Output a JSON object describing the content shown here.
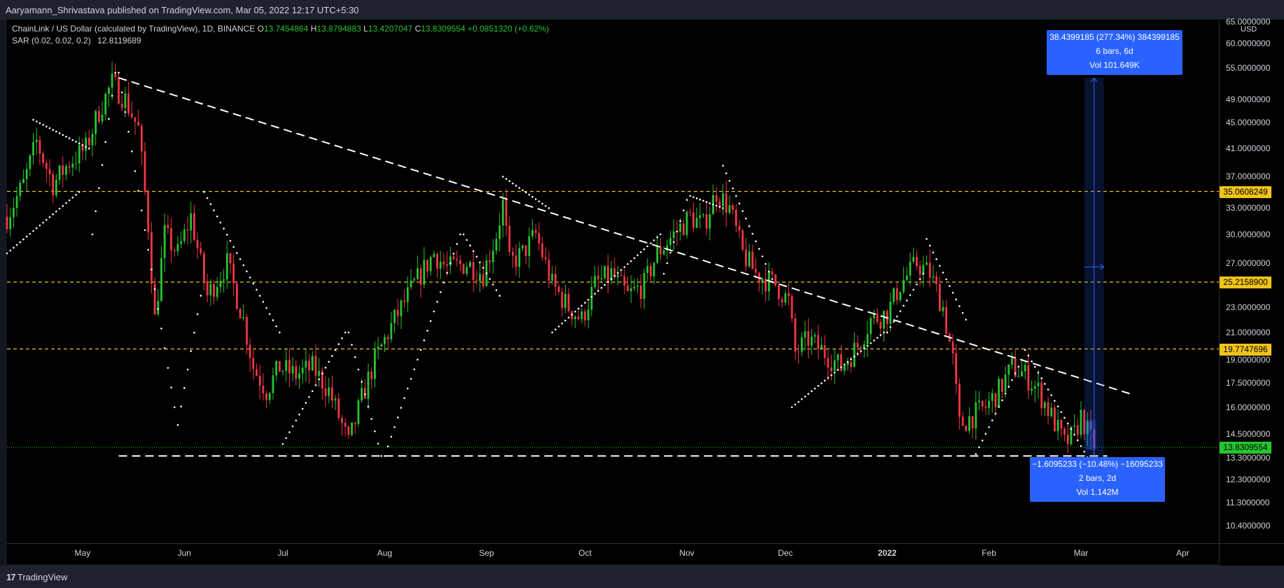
{
  "header": {
    "publisher": "Aaryamann_Shrivastava published on TradingView.com, Mar 05, 2022 12:17 UTC+5:30"
  },
  "legend": {
    "symbol": "ChainLink / US Dollar (calculated by TradingView), 1D, BINANCE",
    "o_label": "O",
    "o": "13.7454864",
    "h_label": "H",
    "h": "13.8794883",
    "l_label": "L",
    "l": "13.4207047",
    "c_label": "C",
    "c": "13.8309554",
    "change": "+0.0851320 (+0.62%)",
    "indicator": "SAR (0.02, 0.02, 0.2)",
    "indicator_value": "12.8119689"
  },
  "currency": "USD",
  "measure_up": {
    "line1": "38.4399185 (277.34%) 384399185",
    "line2": "6 bars, 6d",
    "line3": "Vol 101.649K"
  },
  "measure_down": {
    "line1": "−1.6095233 (−10.48%) −16095233",
    "line2": "2 bars, 2d",
    "line3": "Vol 1.142M"
  },
  "footer": {
    "brand": "TradingView"
  },
  "colors": {
    "bg": "#131722",
    "up": "#26c431",
    "down": "#f23645",
    "sar": "#ffffff",
    "level": "#f0c419",
    "measure": "#2962ff"
  },
  "chart_data": {
    "type": "candlestick",
    "scale": "log",
    "currency": "USD",
    "yticks": [
      65.0,
      60.0,
      55.0,
      49.0,
      45.0,
      41.0,
      37.0,
      33.0,
      30.0,
      27.0,
      23.0,
      21.0,
      19.0,
      17.5,
      16.0,
      14.5,
      13.3,
      12.3,
      11.3,
      10.4
    ],
    "ytick_labels": [
      "65.0000000",
      "60.0000000",
      "55.0000000",
      "49.0000000",
      "45.0000000",
      "41.0000000",
      "37.0000000",
      "33.0000000",
      "30.0000000",
      "27.0000000",
      "23.0000000",
      "21.0000000",
      "19.0000000",
      "17.5000000",
      "16.0000000",
      "14.5000000",
      "13.3000000",
      "12.3000000",
      "11.3000000",
      "10.4000000"
    ],
    "x_labels": [
      "May",
      "Jun",
      "Jul",
      "Aug",
      "Sep",
      "Oct",
      "Nov",
      "Dec",
      "2022",
      "Feb",
      "Mar",
      "Apr"
    ],
    "x_label_dates": [
      "2021-05-01",
      "2021-06-01",
      "2021-07-01",
      "2021-08-01",
      "2021-09-01",
      "2021-10-01",
      "2021-11-01",
      "2021-12-01",
      "2022-01-01",
      "2022-02-01",
      "2022-03-01",
      "2022-04-01"
    ],
    "x_range": [
      "2021-04-08",
      "2022-04-12"
    ],
    "levels": [
      {
        "value": 35.0608249,
        "label": "35.0608249"
      },
      {
        "value": 25.21589,
        "label": "25.2158900"
      },
      {
        "value": 19.7747696,
        "label": "19.7747696"
      }
    ],
    "last_price": {
      "value": 13.8309554,
      "label": "13.8309554"
    },
    "support": {
      "value": 13.4,
      "from": "2021-05-12",
      "to": "2022-03-09"
    },
    "trendline": {
      "from": [
        "2021-05-12",
        53.0
      ],
      "to": [
        "2022-03-16",
        16.8
      ]
    },
    "measure_up": {
      "date": "2022-03-05",
      "from": 13.4,
      "to": 53.0
    },
    "measure_down": {
      "date": "2022-03-04",
      "from": 15.3,
      "to": 13.7
    },
    "price_path": [
      [
        "2021-04-08",
        32.0
      ],
      [
        "2021-04-13",
        36.0
      ],
      [
        "2021-04-17",
        42.0
      ],
      [
        "2021-04-22",
        36.0
      ],
      [
        "2021-04-27",
        39.0
      ],
      [
        "2021-05-02",
        41.0
      ],
      [
        "2021-05-06",
        47.0
      ],
      [
        "2021-05-10",
        52.0
      ],
      [
        "2021-05-14",
        49.0
      ],
      [
        "2021-05-18",
        44.0
      ],
      [
        "2021-05-21",
        31.0
      ],
      [
        "2021-05-23",
        22.0
      ],
      [
        "2021-05-26",
        30.0
      ],
      [
        "2021-05-30",
        28.0
      ],
      [
        "2021-06-03",
        32.0
      ],
      [
        "2021-06-08",
        24.0
      ],
      [
        "2021-06-14",
        27.0
      ],
      [
        "2021-06-19",
        22.0
      ],
      [
        "2021-06-22",
        18.5
      ],
      [
        "2021-06-26",
        17.0
      ],
      [
        "2021-06-30",
        18.5
      ],
      [
        "2021-07-05",
        18.0
      ],
      [
        "2021-07-10",
        18.5
      ],
      [
        "2021-07-15",
        17.0
      ],
      [
        "2021-07-19",
        15.0
      ],
      [
        "2021-07-21",
        14.0
      ],
      [
        "2021-07-25",
        16.5
      ],
      [
        "2021-07-29",
        19.0
      ],
      [
        "2021-08-04",
        22.0
      ],
      [
        "2021-08-10",
        25.0
      ],
      [
        "2021-08-16",
        28.0
      ],
      [
        "2021-08-20",
        26.5
      ],
      [
        "2021-08-26",
        27.0
      ],
      [
        "2021-08-31",
        26.0
      ],
      [
        "2021-09-04",
        30.0
      ],
      [
        "2021-09-06",
        33.5
      ],
      [
        "2021-09-08",
        27.0
      ],
      [
        "2021-09-12",
        28.0
      ],
      [
        "2021-09-16",
        30.0
      ],
      [
        "2021-09-21",
        25.0
      ],
      [
        "2021-09-26",
        23.0
      ],
      [
        "2021-09-30",
        22.0
      ],
      [
        "2021-10-04",
        25.0
      ],
      [
        "2021-10-09",
        26.0
      ],
      [
        "2021-10-14",
        24.0
      ],
      [
        "2021-10-19",
        25.0
      ],
      [
        "2021-10-23",
        28.0
      ],
      [
        "2021-10-28",
        30.0
      ],
      [
        "2021-11-02",
        32.0
      ],
      [
        "2021-11-06",
        31.0
      ],
      [
        "2021-11-10",
        35.0
      ],
      [
        "2021-11-14",
        33.0
      ],
      [
        "2021-11-18",
        28.0
      ],
      [
        "2021-11-22",
        26.0
      ],
      [
        "2021-11-28",
        25.0
      ],
      [
        "2021-12-02",
        23.5
      ],
      [
        "2021-12-04",
        19.5
      ],
      [
        "2021-12-08",
        20.5
      ],
      [
        "2021-12-13",
        19.5
      ],
      [
        "2021-12-18",
        18.5
      ],
      [
        "2021-12-23",
        20.0
      ],
      [
        "2021-12-27",
        22.0
      ],
      [
        "2022-01-01",
        22.5
      ],
      [
        "2022-01-05",
        25.0
      ],
      [
        "2022-01-10",
        27.0
      ],
      [
        "2022-01-14",
        26.0
      ],
      [
        "2022-01-18",
        23.0
      ],
      [
        "2022-01-21",
        19.0
      ],
      [
        "2022-01-23",
        15.0
      ],
      [
        "2022-01-27",
        15.5
      ],
      [
        "2022-01-31",
        16.0
      ],
      [
        "2022-02-04",
        17.0
      ],
      [
        "2022-02-08",
        18.5
      ],
      [
        "2022-02-12",
        18.0
      ],
      [
        "2022-02-16",
        17.0
      ],
      [
        "2022-02-20",
        15.5
      ],
      [
        "2022-02-24",
        14.0
      ],
      [
        "2022-02-27",
        14.5
      ],
      [
        "2022-03-01",
        15.5
      ],
      [
        "2022-03-05",
        13.83
      ]
    ],
    "sar_segments": [
      {
        "from": "2021-04-08",
        "to": "2021-04-30",
        "start": 28.0,
        "end": 35.0
      },
      {
        "from": "2021-04-16",
        "to": "2021-05-03",
        "start": 45.5,
        "end": 41.0
      },
      {
        "from": "2021-05-04",
        "to": "2021-05-11",
        "start": 30.0,
        "end": 54.0
      },
      {
        "from": "2021-05-12",
        "to": "2021-05-29",
        "start": 54.0,
        "end": 16.0
      },
      {
        "from": "2021-05-30",
        "to": "2021-06-06",
        "start": 15.0,
        "end": 24.0
      },
      {
        "from": "2021-06-07",
        "to": "2021-06-30",
        "start": 35.0,
        "end": 21.0
      },
      {
        "from": "2021-07-01",
        "to": "2021-07-20",
        "start": 14.0,
        "end": 21.0
      },
      {
        "from": "2021-07-21",
        "to": "2021-07-31",
        "start": 21.0,
        "end": 13.4
      },
      {
        "from": "2021-08-01",
        "to": "2021-08-24",
        "start": 13.4,
        "end": 30.0
      },
      {
        "from": "2021-08-25",
        "to": "2021-09-05",
        "start": 30.0,
        "end": 24.0
      },
      {
        "from": "2021-09-06",
        "to": "2021-09-20",
        "start": 37.0,
        "end": 33.0
      },
      {
        "from": "2021-09-21",
        "to": "2021-10-24",
        "start": 21.0,
        "end": 30.0
      },
      {
        "from": "2021-10-25",
        "to": "2021-11-01",
        "start": 26.0,
        "end": 34.0
      },
      {
        "from": "2021-11-02",
        "to": "2021-11-12",
        "start": 34.5,
        "end": 33.0
      },
      {
        "from": "2021-11-12",
        "to": "2021-11-27",
        "start": 38.5,
        "end": 25.5
      },
      {
        "from": "2021-12-03",
        "to": "2021-12-31",
        "start": 16.0,
        "end": 21.0
      },
      {
        "from": "2022-01-01",
        "to": "2022-01-12",
        "start": 21.0,
        "end": 26.0
      },
      {
        "from": "2022-01-13",
        "to": "2022-01-25",
        "start": 29.5,
        "end": 22.0
      },
      {
        "from": "2022-01-28",
        "to": "2022-02-11",
        "start": 13.5,
        "end": 19.0
      },
      {
        "from": "2022-02-12",
        "to": "2022-03-05",
        "start": 19.7,
        "end": 12.8
      }
    ]
  }
}
